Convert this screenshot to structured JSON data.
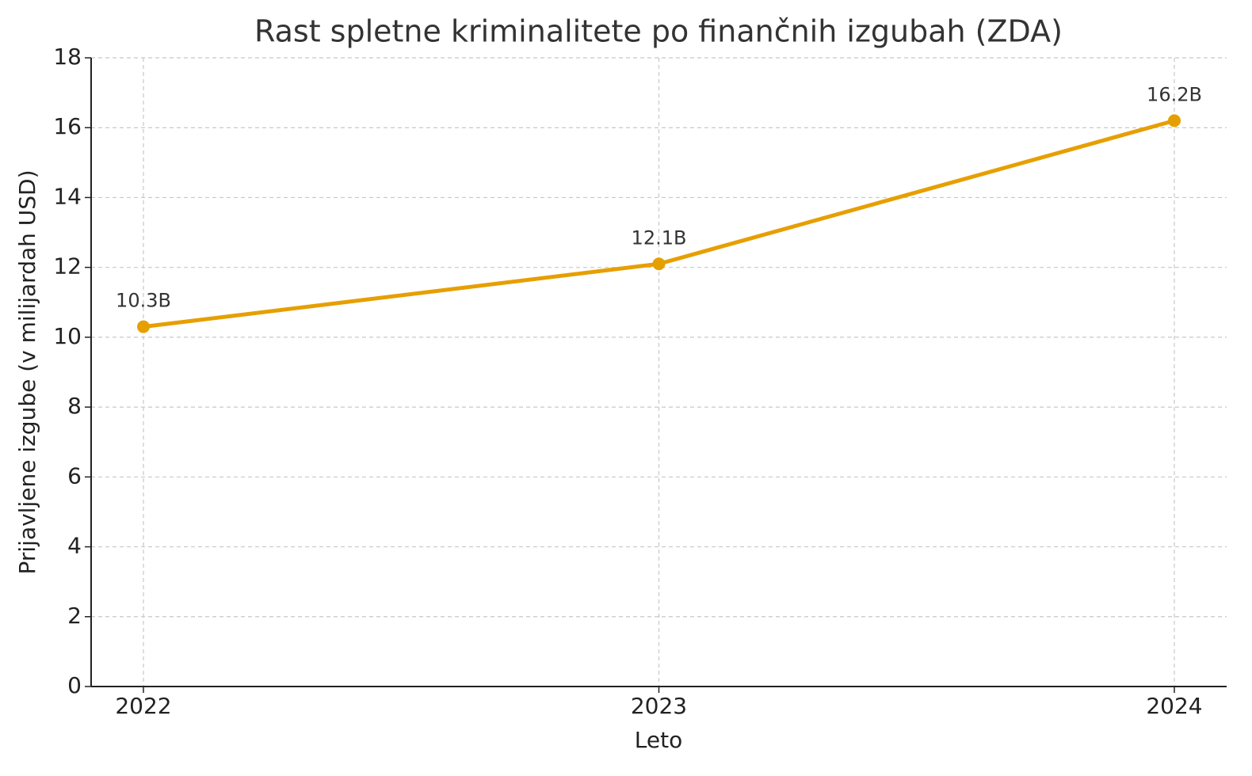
{
  "chart_data": {
    "type": "line",
    "title": "Rast spletne kriminalitete po finančnih izgubah (ZDA)",
    "x_label": "Leto",
    "y_label": "Prijavljene izgube (v milijardah USD)",
    "categories": [
      "2022",
      "2023",
      "2024"
    ],
    "series": [
      {
        "name": "Prijavljene izgube",
        "color": "#e69f00",
        "values": [
          10.3,
          12.1,
          16.2
        ],
        "value_labels": [
          "10.3B",
          "12.1B",
          "16.2B"
        ]
      }
    ],
    "ylim": [
      0,
      18
    ],
    "yticks": [
      0,
      2,
      4,
      6,
      8,
      10,
      12,
      14,
      16,
      18
    ],
    "grid": true
  }
}
